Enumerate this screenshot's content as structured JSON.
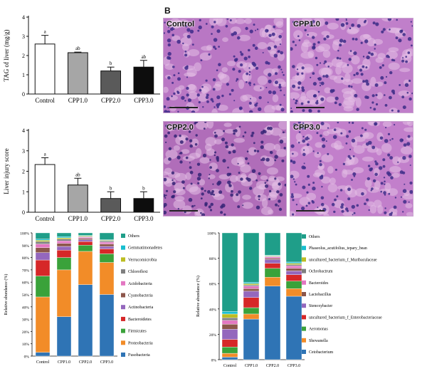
{
  "panel_b_letter": "B",
  "micrographs": [
    {
      "label": "Control",
      "tone": "#b977c4",
      "dots": "#3d2a8a"
    },
    {
      "label": "CPP1.0",
      "tone": "#c07fca",
      "dots": "#3b2c86"
    },
    {
      "label": "CPP2.0",
      "tone": "#b06db9",
      "dots": "#352476"
    },
    {
      "label": "CPP3.0",
      "tone": "#c27fcb",
      "dots": "#3e2e88"
    }
  ],
  "chart_data": [
    {
      "type": "bar",
      "categories": [
        "Control",
        "CPP1.0",
        "CPP2.0",
        "CPP3.0"
      ],
      "values": [
        2.6,
        2.15,
        1.2,
        1.4
      ],
      "errors": [
        0.45,
        0.03,
        0.2,
        0.35
      ],
      "letters": [
        "a",
        "ab",
        "b",
        "ab"
      ],
      "ylabel": "TAG of liver (mg/g)",
      "ylim": [
        0,
        4
      ],
      "yticks": [
        "0",
        "1",
        "2",
        "3",
        "4"
      ],
      "fills": [
        "#ffffff",
        "#a6a6a6",
        "#5a5a5a",
        "#0d0d0d"
      ]
    },
    {
      "type": "bar",
      "categories": [
        "Control",
        "CPP1.0",
        "CPP2.0",
        "CPP3.0"
      ],
      "values": [
        2.33,
        1.33,
        0.67,
        0.67
      ],
      "errors": [
        0.33,
        0.33,
        0.33,
        0.33
      ],
      "letters": [
        "a",
        "ab",
        "b",
        "b"
      ],
      "ylabel": "Liver injury score",
      "ylim": [
        0,
        4
      ],
      "yticks": [
        "0",
        "1",
        "2",
        "3",
        "4"
      ],
      "fills": [
        "#ffffff",
        "#a6a6a6",
        "#5a5a5a",
        "#0d0d0d"
      ]
    },
    {
      "type": "bar",
      "stacked": true,
      "categories": [
        "Control",
        "CPP1.0",
        "CPP2.0",
        "CPP3.0"
      ],
      "ylabel": "Relative abundance (%)",
      "ylim": [
        0,
        100
      ],
      "yticks": [
        "0%",
        "10%",
        "20%",
        "30%",
        "40%",
        "50%",
        "60%",
        "70%",
        "80%",
        "90%",
        "100%"
      ],
      "series": [
        {
          "name": "Fusobacteria",
          "color": "#2f74b5",
          "values": [
            3,
            32,
            58,
            50
          ]
        },
        {
          "name": "Proteobacteria",
          "color": "#f28c28",
          "values": [
            45,
            38,
            27,
            26
          ]
        },
        {
          "name": "Firmicutes",
          "color": "#3aa23a",
          "values": [
            17,
            10,
            5,
            7
          ]
        },
        {
          "name": "Bacteroidetes",
          "color": "#d62728",
          "values": [
            13,
            6,
            3,
            4
          ]
        },
        {
          "name": "Actinobacteria",
          "color": "#9467bd",
          "values": [
            6,
            3,
            1.5,
            2
          ]
        },
        {
          "name": "Cyanobacteria",
          "color": "#8c564b",
          "values": [
            4,
            2.5,
            1,
            2
          ]
        },
        {
          "name": "Acidobacteria",
          "color": "#e377c2",
          "values": [
            3,
            2,
            1,
            1.5
          ]
        },
        {
          "name": "Chloroflexi",
          "color": "#7f7f7f",
          "values": [
            2,
            1.5,
            0.5,
            1
          ]
        },
        {
          "name": "Verrucomicrobia",
          "color": "#bcbd22",
          "values": [
            1,
            1,
            0.5,
            0.5
          ]
        },
        {
          "name": "Gemmatimonadetes",
          "color": "#17becf",
          "values": [
            1,
            1,
            0.5,
            0.5
          ]
        },
        {
          "name": "Others",
          "color": "#1f9e89",
          "values": [
            5,
            3,
            2,
            5.5
          ]
        }
      ]
    },
    {
      "type": "bar",
      "stacked": true,
      "categories": [
        "Control",
        "CPP1.0",
        "CPP2.0",
        "CPP3.0"
      ],
      "ylabel": "Relative abundance (%)",
      "ylim": [
        0,
        100
      ],
      "yticks": [
        "0%",
        "20%",
        "40%",
        "60%",
        "80%",
        "100%"
      ],
      "series": [
        {
          "name": "Cetobacterium",
          "color": "#2f74b5",
          "values": [
            2,
            32,
            58,
            50
          ]
        },
        {
          "name": "Shewanella",
          "color": "#f28c28",
          "values": [
            3,
            4,
            7,
            6
          ]
        },
        {
          "name": "Aeromonas",
          "color": "#3aa23a",
          "values": [
            5,
            5,
            7,
            6
          ]
        },
        {
          "name": "uncultured_bacterium_f_Enterobacteriaceae",
          "color": "#d62728",
          "values": [
            6,
            8,
            4,
            5
          ]
        },
        {
          "name": "Stenoxybacter",
          "color": "#9467bd",
          "values": [
            8,
            5,
            3,
            3
          ]
        },
        {
          "name": "Lactobacillus",
          "color": "#8c564b",
          "values": [
            4,
            2,
            1,
            2
          ]
        },
        {
          "name": "Bacteroides",
          "color": "#e377c2",
          "values": [
            3,
            2,
            1,
            2
          ]
        },
        {
          "name": "Ochrobactrum",
          "color": "#7f7f7f",
          "values": [
            2,
            1,
            0.5,
            1
          ]
        },
        {
          "name": "uncultured_bacterium_f_Muribaculaceae",
          "color": "#bcbd22",
          "values": [
            3,
            1,
            0.5,
            1
          ]
        },
        {
          "name": "Phaseolus_acutifolius_tepary_bean",
          "color": "#17becf",
          "values": [
            2,
            1,
            0.5,
            1
          ]
        },
        {
          "name": "Others",
          "color": "#1f9e89",
          "values": [
            62,
            39,
            17.5,
            23
          ]
        }
      ]
    }
  ]
}
